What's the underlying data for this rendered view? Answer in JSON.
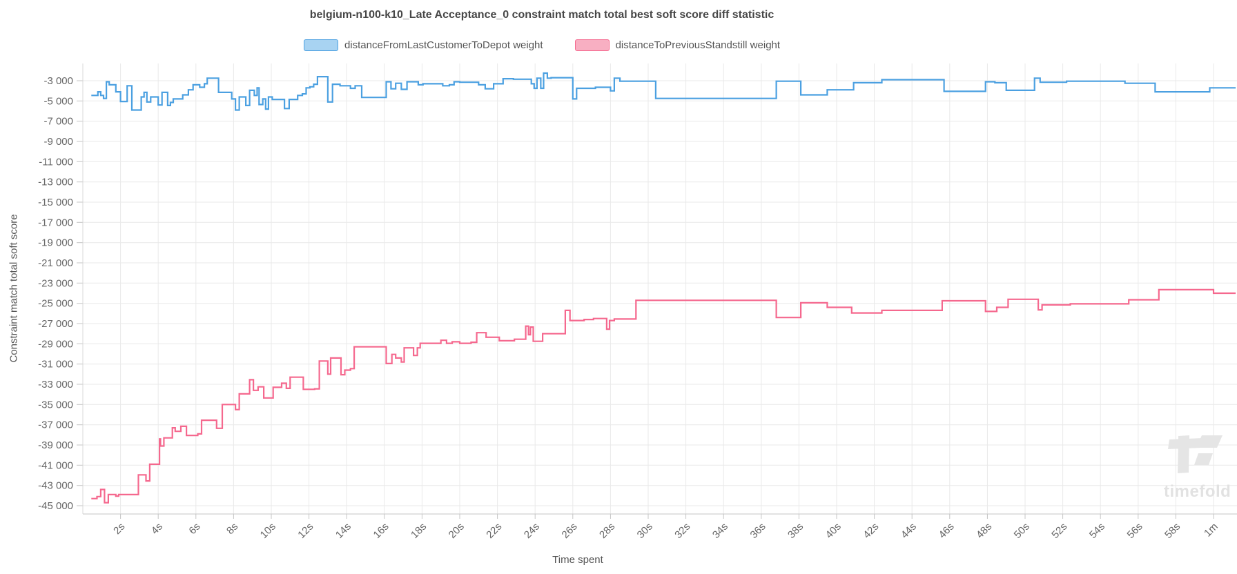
{
  "header": {
    "title": "belgium-n100-k10_Late Acceptance_0 constraint match total best soft score diff statistic"
  },
  "legend": {
    "items": [
      {
        "label": "distanceFromLastCustomerToDepot weight",
        "fill": "#a8d3f2",
        "stroke": "#4ba0e1"
      },
      {
        "label": "distanceToPreviousStandstill weight",
        "fill": "#f8afc2",
        "stroke": "#f5688e"
      }
    ]
  },
  "watermark": {
    "text": "timefold"
  },
  "chart_data": {
    "type": "line",
    "step": true,
    "title": "belgium-n100-k10_Late Acceptance_0 constraint match total best soft score diff statistic",
    "xlabel": "Time spent",
    "ylabel": "Constraint match total soft score",
    "xlim": [
      0,
      61.2
    ],
    "ylim": [
      -45800,
      -1300
    ],
    "grid": true,
    "legend_position": "top",
    "colors": {
      "grid": "#e9e9e9",
      "axis": "#c4c4c4",
      "tick_text": "#666666"
    },
    "x_ticks": [
      {
        "t": 2,
        "label": "2s"
      },
      {
        "t": 4,
        "label": "4s"
      },
      {
        "t": 6,
        "label": "6s"
      },
      {
        "t": 8,
        "label": "8s"
      },
      {
        "t": 10,
        "label": "10s"
      },
      {
        "t": 12,
        "label": "12s"
      },
      {
        "t": 14,
        "label": "14s"
      },
      {
        "t": 16,
        "label": "16s"
      },
      {
        "t": 18,
        "label": "18s"
      },
      {
        "t": 20,
        "label": "20s"
      },
      {
        "t": 22,
        "label": "22s"
      },
      {
        "t": 24,
        "label": "24s"
      },
      {
        "t": 26,
        "label": "26s"
      },
      {
        "t": 28,
        "label": "28s"
      },
      {
        "t": 30,
        "label": "30s"
      },
      {
        "t": 32,
        "label": "32s"
      },
      {
        "t": 34,
        "label": "34s"
      },
      {
        "t": 36,
        "label": "36s"
      },
      {
        "t": 38,
        "label": "38s"
      },
      {
        "t": 40,
        "label": "40s"
      },
      {
        "t": 42,
        "label": "42s"
      },
      {
        "t": 44,
        "label": "44s"
      },
      {
        "t": 46,
        "label": "46s"
      },
      {
        "t": 48,
        "label": "48s"
      },
      {
        "t": 50,
        "label": "50s"
      },
      {
        "t": 52,
        "label": "52s"
      },
      {
        "t": 54,
        "label": "54s"
      },
      {
        "t": 56,
        "label": "56s"
      },
      {
        "t": 58,
        "label": "58s"
      },
      {
        "t": 60,
        "label": "1m"
      }
    ],
    "y_ticks": [
      {
        "v": -3000,
        "label": "-3 000"
      },
      {
        "v": -5000,
        "label": "-5 000"
      },
      {
        "v": -7000,
        "label": "-7 000"
      },
      {
        "v": -9000,
        "label": "-9 000"
      },
      {
        "v": -11000,
        "label": "-11 000"
      },
      {
        "v": -13000,
        "label": "-13 000"
      },
      {
        "v": -15000,
        "label": "-15 000"
      },
      {
        "v": -17000,
        "label": "-17 000"
      },
      {
        "v": -19000,
        "label": "-19 000"
      },
      {
        "v": -21000,
        "label": "-21 000"
      },
      {
        "v": -23000,
        "label": "-23 000"
      },
      {
        "v": -25000,
        "label": "-25 000"
      },
      {
        "v": -27000,
        "label": "-27 000"
      },
      {
        "v": -29000,
        "label": "-29 000"
      },
      {
        "v": -31000,
        "label": "-31 000"
      },
      {
        "v": -33000,
        "label": "-33 000"
      },
      {
        "v": -35000,
        "label": "-35 000"
      },
      {
        "v": -37000,
        "label": "-37 000"
      },
      {
        "v": -39000,
        "label": "-39 000"
      },
      {
        "v": -41000,
        "label": "-41 000"
      },
      {
        "v": -43000,
        "label": "-43 000"
      },
      {
        "v": -45000,
        "label": "-45 000"
      }
    ],
    "series": [
      {
        "name": "distanceFromLastCustomerToDepot weight",
        "color": "#4ba0e1",
        "points": [
          [
            0.45,
            -4450
          ],
          [
            0.8,
            -4100
          ],
          [
            0.95,
            -4450
          ],
          [
            1.1,
            -4750
          ],
          [
            1.25,
            -3100
          ],
          [
            1.4,
            -3400
          ],
          [
            1.75,
            -4100
          ],
          [
            2.0,
            -5050
          ],
          [
            2.35,
            -3500
          ],
          [
            2.6,
            -5900
          ],
          [
            3.1,
            -4600
          ],
          [
            3.25,
            -4150
          ],
          [
            3.4,
            -5100
          ],
          [
            3.6,
            -4600
          ],
          [
            4.0,
            -5400
          ],
          [
            4.2,
            -4150
          ],
          [
            4.5,
            -5450
          ],
          [
            4.65,
            -5150
          ],
          [
            4.8,
            -4800
          ],
          [
            5.3,
            -4400
          ],
          [
            5.6,
            -3900
          ],
          [
            5.85,
            -3400
          ],
          [
            6.2,
            -3650
          ],
          [
            6.45,
            -3300
          ],
          [
            6.6,
            -2750
          ],
          [
            7.2,
            -4150
          ],
          [
            7.9,
            -4800
          ],
          [
            8.1,
            -5900
          ],
          [
            8.3,
            -4600
          ],
          [
            8.65,
            -5450
          ],
          [
            8.85,
            -3950
          ],
          [
            9.1,
            -4450
          ],
          [
            9.25,
            -3700
          ],
          [
            9.35,
            -5350
          ],
          [
            9.55,
            -4800
          ],
          [
            9.7,
            -5800
          ],
          [
            9.85,
            -4600
          ],
          [
            10.05,
            -4850
          ],
          [
            10.7,
            -5750
          ],
          [
            10.95,
            -4850
          ],
          [
            11.4,
            -4450
          ],
          [
            11.65,
            -4300
          ],
          [
            11.85,
            -3700
          ],
          [
            12.05,
            -3600
          ],
          [
            12.25,
            -3350
          ],
          [
            12.45,
            -2600
          ],
          [
            13.0,
            -5100
          ],
          [
            13.25,
            -3350
          ],
          [
            13.65,
            -3500
          ],
          [
            14.2,
            -3750
          ],
          [
            14.45,
            -3500
          ],
          [
            14.8,
            -4650
          ],
          [
            16.1,
            -3100
          ],
          [
            16.35,
            -3800
          ],
          [
            16.6,
            -3250
          ],
          [
            16.9,
            -3850
          ],
          [
            17.2,
            -3100
          ],
          [
            17.8,
            -3400
          ],
          [
            18.05,
            -3300
          ],
          [
            19.1,
            -3500
          ],
          [
            19.45,
            -3400
          ],
          [
            19.7,
            -3100
          ],
          [
            20.0,
            -3150
          ],
          [
            21.0,
            -3400
          ],
          [
            21.35,
            -3800
          ],
          [
            21.8,
            -3300
          ],
          [
            22.3,
            -2800
          ],
          [
            22.85,
            -2850
          ],
          [
            23.8,
            -3300
          ],
          [
            23.95,
            -3750
          ],
          [
            24.1,
            -2750
          ],
          [
            24.3,
            -3750
          ],
          [
            24.45,
            -2250
          ],
          [
            24.65,
            -2750
          ],
          [
            24.85,
            -2700
          ],
          [
            26.0,
            -4800
          ],
          [
            26.2,
            -3750
          ],
          [
            27.2,
            -3650
          ],
          [
            28.0,
            -4000
          ],
          [
            28.2,
            -2750
          ],
          [
            28.5,
            -3050
          ],
          [
            30.4,
            -4750
          ],
          [
            36.8,
            -3050
          ],
          [
            38.1,
            -4400
          ],
          [
            39.5,
            -3900
          ],
          [
            40.9,
            -3200
          ],
          [
            42.4,
            -2900
          ],
          [
            45.7,
            -4050
          ],
          [
            47.9,
            -3100
          ],
          [
            48.4,
            -3200
          ],
          [
            49.0,
            -3950
          ],
          [
            50.5,
            -2750
          ],
          [
            50.8,
            -3150
          ],
          [
            52.2,
            -3050
          ],
          [
            55.3,
            -3250
          ],
          [
            56.9,
            -4100
          ],
          [
            59.8,
            -3700
          ]
        ]
      },
      {
        "name": "distanceToPreviousStandstill weight",
        "color": "#f5688e",
        "points": [
          [
            0.45,
            -44300
          ],
          [
            0.75,
            -44100
          ],
          [
            0.95,
            -43400
          ],
          [
            1.15,
            -44700
          ],
          [
            1.35,
            -43900
          ],
          [
            1.75,
            -44050
          ],
          [
            1.9,
            -43900
          ],
          [
            2.95,
            -41950
          ],
          [
            3.35,
            -42550
          ],
          [
            3.55,
            -40900
          ],
          [
            4.07,
            -38400
          ],
          [
            4.12,
            -39100
          ],
          [
            4.3,
            -38300
          ],
          [
            4.75,
            -37300
          ],
          [
            4.9,
            -37650
          ],
          [
            5.2,
            -37150
          ],
          [
            5.5,
            -38050
          ],
          [
            6.1,
            -37900
          ],
          [
            6.3,
            -36550
          ],
          [
            7.1,
            -37350
          ],
          [
            7.4,
            -35000
          ],
          [
            8.1,
            -35500
          ],
          [
            8.3,
            -33950
          ],
          [
            8.85,
            -32550
          ],
          [
            9.05,
            -33600
          ],
          [
            9.3,
            -33250
          ],
          [
            9.6,
            -34350
          ],
          [
            10.1,
            -33300
          ],
          [
            10.55,
            -32900
          ],
          [
            10.8,
            -33400
          ],
          [
            11.0,
            -32300
          ],
          [
            11.7,
            -33500
          ],
          [
            12.3,
            -33450
          ],
          [
            12.55,
            -30700
          ],
          [
            13.0,
            -32000
          ],
          [
            13.15,
            -30400
          ],
          [
            13.7,
            -32050
          ],
          [
            13.9,
            -31600
          ],
          [
            14.2,
            -31450
          ],
          [
            14.4,
            -29300
          ],
          [
            16.1,
            -30950
          ],
          [
            16.4,
            -30050
          ],
          [
            16.6,
            -30400
          ],
          [
            16.9,
            -30800
          ],
          [
            17.05,
            -29400
          ],
          [
            17.55,
            -30150
          ],
          [
            17.75,
            -29400
          ],
          [
            17.9,
            -28950
          ],
          [
            19.0,
            -28650
          ],
          [
            19.3,
            -28950
          ],
          [
            19.6,
            -28800
          ],
          [
            20.0,
            -28950
          ],
          [
            20.6,
            -28850
          ],
          [
            20.9,
            -27900
          ],
          [
            21.4,
            -28350
          ],
          [
            22.1,
            -28700
          ],
          [
            22.9,
            -28550
          ],
          [
            23.5,
            -27250
          ],
          [
            23.65,
            -28100
          ],
          [
            23.75,
            -27350
          ],
          [
            23.9,
            -28750
          ],
          [
            24.4,
            -28000
          ],
          [
            25.6,
            -25700
          ],
          [
            25.85,
            -26700
          ],
          [
            26.6,
            -26600
          ],
          [
            27.1,
            -26500
          ],
          [
            27.8,
            -27550
          ],
          [
            27.95,
            -26700
          ],
          [
            28.2,
            -26550
          ],
          [
            29.35,
            -24700
          ],
          [
            36.8,
            -26400
          ],
          [
            38.1,
            -24950
          ],
          [
            39.5,
            -25400
          ],
          [
            40.8,
            -25950
          ],
          [
            42.4,
            -25700
          ],
          [
            45.6,
            -24750
          ],
          [
            47.9,
            -25800
          ],
          [
            48.5,
            -25400
          ],
          [
            49.1,
            -24600
          ],
          [
            50.7,
            -25650
          ],
          [
            50.9,
            -25150
          ],
          [
            52.4,
            -25050
          ],
          [
            55.5,
            -24650
          ],
          [
            57.1,
            -23650
          ],
          [
            60.0,
            -24000
          ]
        ]
      }
    ]
  }
}
